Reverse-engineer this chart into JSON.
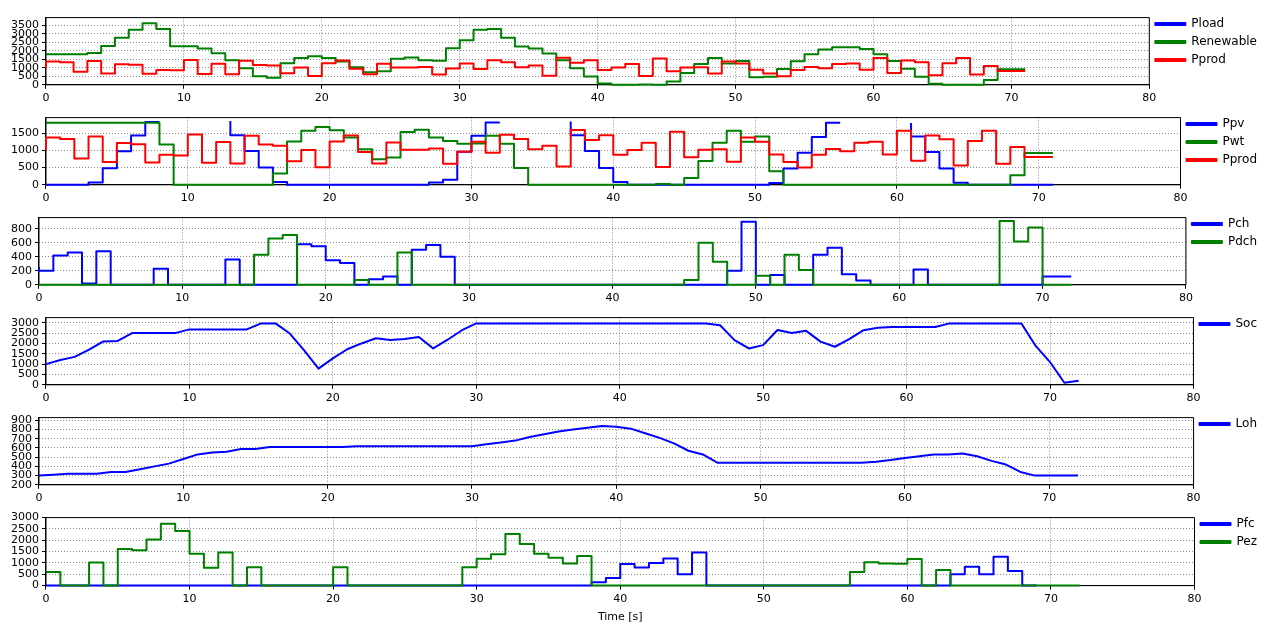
{
  "chart_data": [
    {
      "type": "step",
      "x": [
        0,
        1,
        2,
        3,
        4,
        5,
        6,
        7,
        8,
        9,
        10,
        11,
        12,
        13,
        14,
        15,
        16,
        17,
        18,
        19,
        20,
        21,
        22,
        23,
        24,
        25,
        26,
        27,
        28,
        29,
        30,
        31,
        32,
        33,
        34,
        35,
        36,
        37,
        38,
        39,
        40,
        41,
        42,
        43,
        44,
        45,
        46,
        47,
        48,
        49,
        50,
        51,
        52,
        53,
        54,
        55,
        56,
        57,
        58,
        59,
        60,
        61,
        62,
        63,
        64,
        65,
        66,
        67,
        68,
        69,
        70,
        71
      ],
      "xlim": [
        0,
        80
      ],
      "xticks": [
        0,
        10,
        20,
        30,
        40,
        50,
        60,
        70,
        80
      ],
      "ylim": [
        0,
        3950
      ],
      "yticks": [
        0,
        500,
        1000,
        1500,
        2000,
        2500,
        3000,
        3500
      ],
      "grid": true,
      "legend": "right",
      "series": [
        {
          "name": "Pload",
          "color": "#0000ff",
          "values": [
            null,
            null,
            null,
            null,
            null,
            null,
            null,
            null,
            null,
            null,
            null,
            null,
            null,
            null,
            null,
            null,
            null,
            null,
            null,
            null,
            null,
            null,
            null,
            null,
            null,
            null,
            null,
            null,
            null,
            null,
            null,
            null,
            null,
            null,
            null,
            null,
            null,
            null,
            null,
            null,
            null,
            null,
            null,
            null,
            null,
            null,
            null,
            null,
            null,
            null,
            null,
            null,
            null,
            null,
            null,
            null,
            null,
            null,
            null,
            null,
            null,
            null,
            null,
            null,
            null,
            null,
            null,
            null,
            null,
            null,
            null,
            null
          ]
        },
        {
          "name": "Renewable",
          "color": "#008000",
          "values": [
            1800,
            1800,
            1800,
            1800,
            1870,
            2280,
            2770,
            3230,
            3620,
            3280,
            2260,
            2260,
            2130,
            1850,
            1440,
            980,
            500,
            410,
            1260,
            1570,
            1680,
            1580,
            1370,
            1030,
            740,
            790,
            1530,
            1600,
            1440,
            1420,
            2150,
            2620,
            3230,
            3280,
            2760,
            2250,
            2130,
            1840,
            1440,
            980,
            490,
            80,
            0,
            0,
            20,
            0,
            200,
            690,
            1220,
            1570,
            1250,
            1400,
            440,
            470,
            930,
            1390,
            1800,
            2080,
            2210,
            2210,
            2110,
            1790,
            1400,
            950,
            470,
            60,
            0,
            0,
            0,
            280,
            920,
            920
          ]
        },
        {
          "name": "Pprod",
          "color": "#ff0000",
          "values": [
            1000,
            1370,
            1330,
            760,
            1400,
            660,
            1210,
            1180,
            650,
            870,
            850,
            1460,
            640,
            1240,
            620,
            1420,
            1170,
            1130,
            680,
            1010,
            510,
            1260,
            1430,
            950,
            620,
            1230,
            1020,
            1020,
            1050,
            610,
            960,
            1250,
            930,
            1450,
            1330,
            1030,
            1130,
            530,
            1590,
            1300,
            1440,
            870,
            1010,
            1220,
            520,
            1540,
            800,
            1020,
            1030,
            670,
            1370,
            1250,
            880,
            660,
            500,
            870,
            1040,
            970,
            1220,
            1250,
            880,
            1570,
            700,
            1430,
            1320,
            560,
            1270,
            1570,
            610,
            1100,
            810,
            810
          ]
        }
      ]
    },
    {
      "type": "step",
      "x": [
        0,
        1,
        2,
        3,
        4,
        5,
        6,
        7,
        8,
        9,
        10,
        11,
        12,
        13,
        14,
        15,
        16,
        17,
        18,
        19,
        20,
        21,
        22,
        23,
        24,
        25,
        26,
        27,
        28,
        29,
        30,
        31,
        32,
        33,
        34,
        35,
        36,
        37,
        38,
        39,
        40,
        41,
        42,
        43,
        44,
        45,
        46,
        47,
        48,
        49,
        50,
        51,
        52,
        53,
        54,
        55,
        56,
        57,
        58,
        59,
        60,
        61,
        62,
        63,
        64,
        65,
        66,
        67,
        68,
        69,
        70,
        71
      ],
      "xlim": [
        0,
        80
      ],
      "xticks": [
        0,
        10,
        20,
        30,
        40,
        50,
        60,
        70,
        80
      ],
      "ylim": [
        0,
        1950
      ],
      "yticks": [
        0,
        500,
        1000,
        1500
      ],
      "grid": true,
      "legend": "right",
      "series": [
        {
          "name": "Ppv",
          "color": "#0000ff",
          "values": [
            0,
            0,
            0,
            0,
            70,
            480,
            970,
            1430,
            1820,
            null,
            null,
            null,
            null,
            1850,
            1440,
            980,
            500,
            80,
            0,
            0,
            0,
            0,
            0,
            0,
            0,
            0,
            0,
            0,
            70,
            150,
            960,
            1420,
            1810,
            null,
            null,
            null,
            null,
            1840,
            1440,
            980,
            490,
            80,
            0,
            0,
            0,
            0,
            0,
            0,
            0,
            0,
            0,
            0,
            50,
            470,
            930,
            1390,
            1800,
            null,
            null,
            null,
            null,
            1790,
            1400,
            950,
            470,
            60,
            0,
            0,
            0,
            0,
            0,
            0
          ]
        },
        {
          "name": "Pwt",
          "color": "#008000",
          "values": [
            1800,
            1800,
            1800,
            1800,
            1800,
            1800,
            1800,
            1800,
            1800,
            1170,
            0,
            0,
            0,
            0,
            0,
            0,
            0,
            330,
            1260,
            1570,
            1680,
            1580,
            1370,
            1030,
            740,
            790,
            1530,
            1600,
            1370,
            1270,
            1190,
            1200,
            1420,
            1190,
            490,
            0,
            0,
            0,
            0,
            0,
            0,
            0,
            0,
            0,
            20,
            0,
            200,
            690,
            1220,
            1570,
            1250,
            1400,
            390,
            0,
            0,
            0,
            0,
            0,
            0,
            0,
            0,
            0,
            0,
            0,
            0,
            0,
            0,
            0,
            0,
            280,
            920,
            920
          ]
        },
        {
          "name": "Pprod",
          "color": "#ff0000",
          "values": [
            1000,
            1370,
            1330,
            760,
            1400,
            660,
            1210,
            1180,
            650,
            870,
            850,
            1460,
            640,
            1240,
            620,
            1420,
            1170,
            1130,
            680,
            1010,
            510,
            1260,
            1430,
            950,
            620,
            1230,
            1020,
            1020,
            1050,
            610,
            960,
            1250,
            930,
            1450,
            1330,
            1030,
            1130,
            530,
            1590,
            1300,
            1440,
            870,
            1010,
            1220,
            520,
            1540,
            800,
            1020,
            1030,
            670,
            1370,
            1250,
            880,
            660,
            500,
            870,
            1040,
            970,
            1220,
            1250,
            880,
            1570,
            700,
            1430,
            1320,
            560,
            1270,
            1570,
            610,
            1100,
            810,
            810
          ]
        }
      ]
    },
    {
      "type": "step",
      "x": [
        0,
        1,
        2,
        3,
        4,
        5,
        6,
        7,
        8,
        9,
        10,
        11,
        12,
        13,
        14,
        15,
        16,
        17,
        18,
        19,
        20,
        21,
        22,
        23,
        24,
        25,
        26,
        27,
        28,
        29,
        30,
        31,
        32,
        33,
        34,
        35,
        36,
        37,
        38,
        39,
        40,
        41,
        42,
        43,
        44,
        45,
        46,
        47,
        48,
        49,
        50,
        51,
        52,
        53,
        54,
        55,
        56,
        57,
        58,
        59,
        60,
        61,
        62,
        63,
        64,
        65,
        66,
        67,
        68,
        69,
        70,
        71,
        72
      ],
      "xlim": [
        0,
        80
      ],
      "xticks": [
        0,
        10,
        20,
        30,
        40,
        50,
        60,
        70,
        80
      ],
      "ylim": [
        0,
        960
      ],
      "yticks": [
        0,
        200,
        400,
        600,
        800
      ],
      "grid": true,
      "legend": "right",
      "series": [
        {
          "name": "Pch",
          "color": "#0000ff",
          "values": [
            250,
            200,
            420,
            460,
            20,
            480,
            0,
            0,
            0,
            230,
            0,
            0,
            0,
            0,
            360,
            0,
            0,
            0,
            0,
            580,
            550,
            350,
            310,
            0,
            80,
            120,
            0,
            500,
            570,
            400,
            0,
            0,
            0,
            0,
            0,
            0,
            0,
            0,
            0,
            0,
            0,
            0,
            0,
            0,
            0,
            0,
            0,
            0,
            0,
            200,
            900,
            0,
            140,
            0,
            0,
            430,
            530,
            150,
            60,
            0,
            0,
            0,
            220,
            0,
            0,
            0,
            0,
            0,
            0,
            0,
            0,
            120,
            120
          ]
        },
        {
          "name": "Pdch",
          "color": "#008000",
          "values": [
            0,
            0,
            0,
            0,
            0,
            0,
            0,
            0,
            0,
            0,
            0,
            0,
            0,
            0,
            0,
            0,
            430,
            660,
            710,
            0,
            0,
            0,
            0,
            70,
            0,
            0,
            460,
            0,
            0,
            0,
            0,
            0,
            0,
            0,
            0,
            0,
            0,
            0,
            0,
            0,
            0,
            0,
            0,
            0,
            0,
            0,
            70,
            600,
            330,
            0,
            0,
            130,
            0,
            430,
            210,
            0,
            0,
            0,
            0,
            0,
            0,
            0,
            0,
            0,
            0,
            0,
            0,
            0,
            910,
            620,
            820,
            0,
            0
          ]
        }
      ]
    },
    {
      "type": "line",
      "x": [
        0,
        1,
        2,
        3,
        4,
        5,
        6,
        7,
        8,
        9,
        10,
        11,
        12,
        13,
        14,
        15,
        16,
        17,
        18,
        19,
        20,
        21,
        22,
        23,
        24,
        25,
        26,
        27,
        28,
        29,
        30,
        31,
        32,
        33,
        34,
        35,
        36,
        37,
        38,
        39,
        40,
        41,
        42,
        43,
        44,
        45,
        46,
        47,
        48,
        49,
        50,
        51,
        52,
        53,
        54,
        55,
        56,
        57,
        58,
        59,
        60,
        61,
        62,
        63,
        64,
        65,
        66,
        67,
        68,
        69,
        70,
        71,
        72
      ],
      "xlim": [
        0,
        80
      ],
      "xticks": [
        0,
        10,
        20,
        30,
        40,
        50,
        60,
        70,
        80
      ],
      "ylim": [
        0,
        3250
      ],
      "yticks": [
        0,
        500,
        1000,
        1500,
        2000,
        2500,
        3000
      ],
      "grid": true,
      "legend": "right",
      "series": [
        {
          "name": "Soc",
          "color": "#0000ff",
          "values": [
            1000,
            1200,
            1350,
            1700,
            2100,
            2120,
            2500,
            2500,
            2500,
            2500,
            2680,
            2680,
            2680,
            2680,
            2680,
            2970,
            2970,
            2480,
            1660,
            780,
            1280,
            1720,
            2000,
            2250,
            2170,
            2220,
            2310,
            1760,
            2180,
            2640,
            2970,
            2970,
            2970,
            2970,
            2970,
            2970,
            2970,
            2970,
            2970,
            2970,
            2970,
            2970,
            2970,
            2970,
            2970,
            2970,
            2970,
            2880,
            2160,
            1760,
            1920,
            2650,
            2510,
            2610,
            2090,
            1840,
            2210,
            2640,
            2760,
            2800,
            2800,
            2800,
            2800,
            2970,
            2970,
            2970,
            2970,
            2970,
            2970,
            1880,
            1100,
            100,
            200
          ]
        }
      ]
    },
    {
      "type": "line",
      "x": [
        0,
        1,
        2,
        3,
        4,
        5,
        6,
        7,
        8,
        9,
        10,
        11,
        12,
        13,
        14,
        15,
        16,
        17,
        18,
        19,
        20,
        21,
        22,
        23,
        24,
        25,
        26,
        27,
        28,
        29,
        30,
        31,
        32,
        33,
        34,
        35,
        36,
        37,
        38,
        39,
        40,
        41,
        42,
        43,
        44,
        45,
        46,
        47,
        48,
        49,
        50,
        51,
        52,
        53,
        54,
        55,
        56,
        57,
        58,
        59,
        60,
        61,
        62,
        63,
        64,
        65,
        66,
        67,
        68,
        69,
        70,
        71,
        72
      ],
      "xlim": [
        0,
        80
      ],
      "xticks": [
        0,
        10,
        20,
        30,
        40,
        50,
        60,
        70,
        80
      ],
      "ylim": [
        200,
        930
      ],
      "yticks": [
        200,
        300,
        400,
        500,
        600,
        700,
        800,
        900
      ],
      "grid": true,
      "legend": "right",
      "series": [
        {
          "name": "Loh",
          "color": "#0000ff",
          "values": [
            300,
            310,
            320,
            320,
            320,
            340,
            340,
            370,
            400,
            430,
            480,
            530,
            550,
            560,
            590,
            590,
            610,
            610,
            610,
            610,
            610,
            610,
            620,
            620,
            620,
            620,
            620,
            620,
            620,
            620,
            620,
            640,
            660,
            680,
            720,
            750,
            780,
            800,
            820,
            840,
            830,
            810,
            760,
            710,
            650,
            570,
            530,
            440,
            440,
            440,
            440,
            440,
            440,
            440,
            440,
            440,
            440,
            440,
            450,
            470,
            490,
            510,
            530,
            530,
            540,
            510,
            460,
            420,
            340,
            300,
            300,
            300,
            300
          ]
        }
      ]
    },
    {
      "type": "step",
      "x": [
        0,
        1,
        2,
        3,
        4,
        5,
        6,
        7,
        8,
        9,
        10,
        11,
        12,
        13,
        14,
        15,
        16,
        17,
        18,
        19,
        20,
        21,
        22,
        23,
        24,
        25,
        26,
        27,
        28,
        29,
        30,
        31,
        32,
        33,
        34,
        35,
        36,
        37,
        38,
        39,
        40,
        41,
        42,
        43,
        44,
        45,
        46,
        47,
        48,
        49,
        50,
        51,
        52,
        53,
        54,
        55,
        56,
        57,
        58,
        59,
        60,
        61,
        62,
        63,
        64,
        65,
        66,
        67,
        68,
        69,
        70,
        71,
        72
      ],
      "xlim": [
        0,
        80
      ],
      "xticks": [
        0,
        10,
        20,
        30,
        40,
        50,
        60,
        70,
        80
      ],
      "ylim": [
        0,
        3000
      ],
      "yticks": [
        0,
        500,
        1000,
        1500,
        2000,
        2500,
        3000
      ],
      "grid": true,
      "legend": "right",
      "xlabel": "Time [s]",
      "series": [
        {
          "name": "Pfc",
          "color": "#0000ff",
          "values": [
            0,
            0,
            0,
            0,
            0,
            0,
            0,
            0,
            0,
            0,
            0,
            0,
            0,
            0,
            0,
            0,
            0,
            0,
            0,
            0,
            0,
            0,
            0,
            0,
            0,
            0,
            0,
            0,
            0,
            0,
            0,
            0,
            0,
            0,
            0,
            0,
            0,
            0,
            0,
            150,
            340,
            950,
            800,
            1000,
            1200,
            500,
            1460,
            0,
            0,
            0,
            0,
            0,
            0,
            0,
            0,
            0,
            0,
            0,
            0,
            0,
            0,
            0,
            0,
            0,
            500,
            830,
            500,
            1270,
            640,
            0,
            null,
            null,
            null
          ]
        },
        {
          "name": "Pez",
          "color": "#008000",
          "values": [
            600,
            600,
            0,
            0,
            1020,
            0,
            1620,
            1560,
            2030,
            2730,
            2410,
            1410,
            790,
            1460,
            0,
            810,
            0,
            0,
            0,
            0,
            0,
            810,
            0,
            0,
            0,
            0,
            0,
            0,
            0,
            0,
            810,
            1180,
            1380,
            2280,
            1840,
            1410,
            1230,
            980,
            1310,
            0,
            0,
            0,
            0,
            0,
            0,
            0,
            0,
            0,
            0,
            0,
            0,
            0,
            0,
            0,
            0,
            0,
            0,
            600,
            1030,
            980,
            960,
            1170,
            0,
            690,
            0,
            0,
            0,
            0,
            0,
            0,
            0,
            0,
            0
          ]
        }
      ]
    }
  ]
}
